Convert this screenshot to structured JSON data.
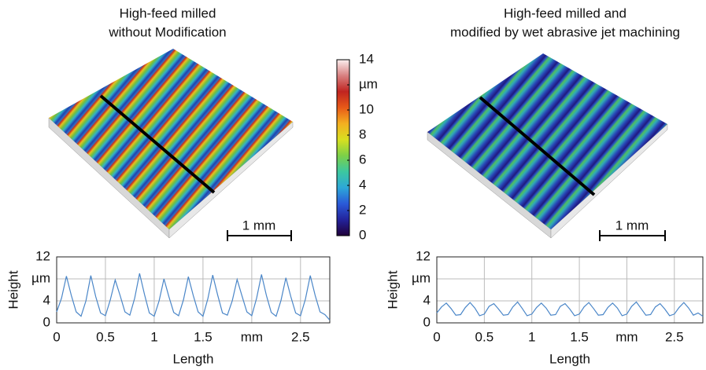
{
  "panels": [
    {
      "title": [
        "High-feed milled",
        "without Modification"
      ],
      "scale_bar": "1 mm"
    },
    {
      "title": [
        "High-feed milled and",
        "modified by wet abrasive jet machining"
      ],
      "scale_bar": "1 mm"
    }
  ],
  "colorbar": {
    "lim": [
      0,
      14
    ],
    "ticks": [
      0,
      2,
      4,
      6,
      8,
      10,
      {
        "value": 12,
        "label": "µm"
      },
      14
    ],
    "colors": [
      "#20003a",
      "#23239c",
      "#2a5ad8",
      "#2da8d8",
      "#3cc8a0",
      "#7cd048",
      "#d8e020",
      "#f4b020",
      "#e85a18",
      "#c02420",
      "#d88080",
      "#fbefef"
    ]
  },
  "chart_data": [
    {
      "type": "line",
      "xlabel": "Length",
      "ylabel": "Height",
      "x": [
        0,
        0.05,
        0.1,
        0.15,
        0.2,
        0.25,
        0.3,
        0.35,
        0.4,
        0.45,
        0.5,
        0.55,
        0.6,
        0.65,
        0.7,
        0.75,
        0.8,
        0.85,
        0.9,
        0.95,
        1,
        1.05,
        1.1,
        1.15,
        1.2,
        1.25,
        1.3,
        1.35,
        1.4,
        1.45,
        1.5,
        1.55,
        1.6,
        1.65,
        1.7,
        1.75,
        1.8,
        1.85,
        1.9,
        1.95,
        2,
        2.05,
        2.1,
        2.15,
        2.2,
        2.25,
        2.3,
        2.35,
        2.4,
        2.45,
        2.5,
        2.55,
        2.6,
        2.65,
        2.7,
        2.75,
        2.8
      ],
      "series": [
        {
          "color": "#4a86c8",
          "values": [
            2,
            4.5,
            8.5,
            5,
            2,
            1.2,
            4,
            8.6,
            4.8,
            1.8,
            1.3,
            4.2,
            7.8,
            5,
            2,
            1.4,
            4.5,
            9,
            5.2,
            1.8,
            1.2,
            4,
            8,
            4.8,
            1.9,
            1.3,
            4.2,
            8.4,
            5,
            2,
            1.2,
            4.4,
            8.7,
            5.1,
            1.8,
            1.4,
            4,
            7.9,
            4.9,
            2,
            1.3,
            4.5,
            8.8,
            5,
            1.9,
            1.2,
            4.1,
            8.2,
            4.8,
            1.8,
            1.3,
            4.3,
            8.6,
            5,
            2,
            1.5,
            0.5
          ]
        }
      ],
      "xlim": [
        0,
        2.8
      ],
      "ylim": [
        0,
        12
      ],
      "xticks": [
        0,
        0.5,
        1,
        1.5,
        {
          "value": 2,
          "label": "mm"
        },
        2.5
      ],
      "yticks": [
        0,
        4,
        {
          "value": 8,
          "label": "µm"
        },
        12
      ],
      "grid": true
    },
    {
      "type": "line",
      "xlabel": "Length",
      "ylabel": "Height",
      "x": [
        0,
        0.05,
        0.1,
        0.15,
        0.2,
        0.25,
        0.3,
        0.35,
        0.4,
        0.45,
        0.5,
        0.55,
        0.6,
        0.65,
        0.7,
        0.75,
        0.8,
        0.85,
        0.9,
        0.95,
        1,
        1.05,
        1.1,
        1.15,
        1.2,
        1.25,
        1.3,
        1.35,
        1.4,
        1.45,
        1.5,
        1.55,
        1.6,
        1.65,
        1.7,
        1.75,
        1.8,
        1.85,
        1.9,
        1.95,
        2,
        2.05,
        2.1,
        2.15,
        2.2,
        2.25,
        2.3,
        2.35,
        2.4,
        2.45,
        2.5,
        2.55,
        2.6,
        2.65,
        2.7,
        2.75,
        2.8
      ],
      "series": [
        {
          "color": "#4a86c8",
          "values": [
            1.8,
            2.9,
            3.6,
            2.6,
            1.4,
            1.5,
            2.8,
            3.7,
            2.7,
            1.3,
            1.6,
            3,
            3.5,
            2.5,
            1.4,
            1.5,
            2.9,
            3.8,
            2.6,
            1.3,
            1.6,
            2.8,
            3.6,
            2.7,
            1.4,
            1.5,
            3,
            3.5,
            2.5,
            1.3,
            1.6,
            2.9,
            3.7,
            2.6,
            1.4,
            1.5,
            2.8,
            3.6,
            2.7,
            1.3,
            1.6,
            3,
            3.8,
            2.6,
            1.4,
            1.5,
            2.9,
            3.5,
            2.5,
            1.3,
            1.6,
            2.8,
            3.7,
            2.7,
            1.4,
            1.8,
            1.2
          ]
        }
      ],
      "xlim": [
        0,
        2.8
      ],
      "ylim": [
        0,
        12
      ],
      "xticks": [
        0,
        0.5,
        1,
        1.5,
        {
          "value": 2,
          "label": "mm"
        },
        2.5
      ],
      "yticks": [
        0,
        4,
        {
          "value": 8,
          "label": "µm"
        },
        12
      ],
      "grid": true
    }
  ]
}
